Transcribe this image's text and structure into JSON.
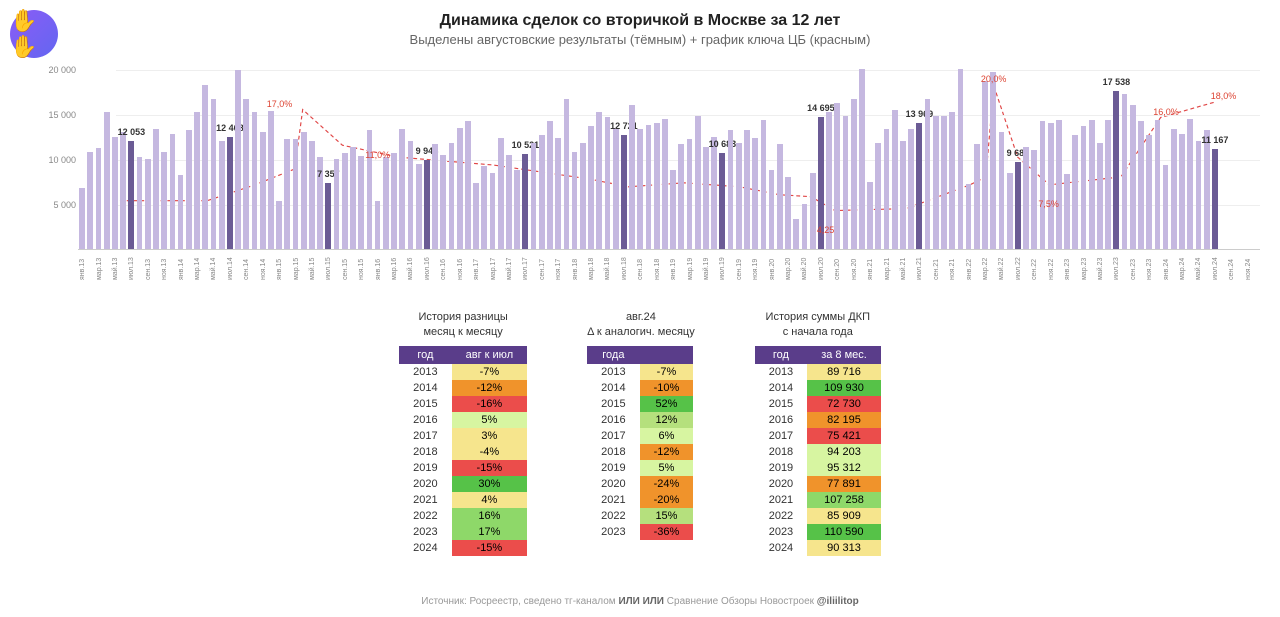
{
  "header": {
    "title": "Динамика сделок со вторичкой в Москве за 12 лет",
    "subtitle": "Выделены августовские результаты (тёмным) + график ключа ЦБ (красным)"
  },
  "chart": {
    "type": "bar+line",
    "ylim": [
      0,
      20000
    ],
    "yticks": [
      5000,
      10000,
      15000,
      20000
    ],
    "ytick_labels": [
      "5 000",
      "10 000",
      "15 000",
      "20 000"
    ],
    "bar_color": "#c5b8e0",
    "bar_highlight_color": "#6b5b95",
    "line_color": "#e04646",
    "line_dash": "4,3",
    "background": "#ffffff",
    "grid_color": "#eeeeee",
    "months": [
      "янв",
      "мар",
      "май",
      "июл",
      "сен",
      "ноя"
    ],
    "years": [
      13,
      14,
      15,
      16,
      17,
      18,
      19,
      20,
      21,
      22,
      23,
      24
    ],
    "bars": [
      6800,
      10800,
      11200,
      15200,
      12500,
      13000,
      12053,
      10200,
      10000,
      13300,
      10800,
      12800,
      8200,
      13200,
      15200,
      18200,
      16700,
      12000,
      12468,
      19900,
      16700,
      15200,
      13000,
      15300,
      5300,
      12200,
      12200,
      13000,
      12000,
      10200,
      7357,
      10000,
      10700,
      11300,
      10300,
      13200,
      5300,
      10200,
      10700,
      13300,
      12000,
      9400,
      9944,
      11700,
      10500,
      11800,
      13500,
      14200,
      7300,
      9200,
      8400,
      12300,
      10500,
      8800,
      10521,
      11800,
      12700,
      14200,
      12300,
      16700,
      10800,
      11800,
      13700,
      15200,
      14700,
      13400,
      12721,
      16000,
      13300,
      13800,
      14000,
      14500,
      8800,
      11700,
      12200,
      14800,
      11300,
      12500,
      10683,
      13200,
      11800,
      13200,
      12300,
      14300,
      8800,
      11700,
      8000,
      3300,
      5000,
      8500,
      14695,
      15200,
      16200,
      14800,
      16700,
      20000,
      7500,
      11800,
      13300,
      15500,
      12000,
      13300,
      13969,
      16700,
      14800,
      14800,
      15200,
      20000,
      7200,
      11700,
      18700,
      19700,
      13000,
      8400,
      9689,
      11300,
      11000,
      14200,
      14000,
      14300,
      8300,
      12700,
      13700,
      14300,
      11800,
      14300,
      17538,
      17200,
      16000,
      14200,
      12700,
      14300,
      9300,
      13300,
      12800,
      14500,
      12000,
      13200,
      11167
    ],
    "highlight_idx": [
      6,
      18,
      30,
      42,
      54,
      66,
      78,
      90,
      102,
      114,
      126,
      138
    ],
    "highlight_labels": {
      "6": "12 053",
      "18": "12 468",
      "30": "7 357",
      "42": "9 944",
      "54": "10 521",
      "66": "12 721",
      "78": "10 683",
      "90": "14 695",
      "102": "13 969",
      "114": "9 689",
      "126": "17 538",
      "138": "11 167"
    },
    "rate_points": [
      {
        "i": 0,
        "v": 5.5
      },
      {
        "i": 11,
        "v": 5.5
      },
      {
        "i": 17,
        "v": 7.5
      },
      {
        "i": 22,
        "v": 9.5
      },
      {
        "i": 23,
        "v": 17.0
      },
      {
        "i": 28,
        "v": 12.5
      },
      {
        "i": 35,
        "v": 11.0
      },
      {
        "i": 47,
        "v": 10.0
      },
      {
        "i": 59,
        "v": 8.25
      },
      {
        "i": 64,
        "v": 7.25
      },
      {
        "i": 71,
        "v": 7.75
      },
      {
        "i": 78,
        "v": 7.25
      },
      {
        "i": 83,
        "v": 6.25
      },
      {
        "i": 87,
        "v": 6.0
      },
      {
        "i": 90,
        "v": 4.25
      },
      {
        "i": 99,
        "v": 4.5
      },
      {
        "i": 107,
        "v": 7.5
      },
      {
        "i": 109,
        "v": 8.5
      },
      {
        "i": 110,
        "v": 20.0
      },
      {
        "i": 113,
        "v": 11.0
      },
      {
        "i": 117,
        "v": 7.5
      },
      {
        "i": 126,
        "v": 8.5
      },
      {
        "i": 129,
        "v": 13.0
      },
      {
        "i": 131,
        "v": 16.0
      },
      {
        "i": 138,
        "v": 18.0
      }
    ],
    "rate_labels": [
      {
        "i": 23,
        "text": "17,0%",
        "dy": -12
      },
      {
        "i": 35,
        "text": "11,0%",
        "dy": -10
      },
      {
        "i": 90,
        "text": "4,25",
        "dy": 10
      },
      {
        "i": 110,
        "text": "20,0%",
        "dy": -12
      },
      {
        "i": 117,
        "text": "7,5%",
        "dy": 10
      },
      {
        "i": 131,
        "text": "16,0%",
        "dy": -12
      },
      {
        "i": 138,
        "text": "18,0%",
        "dy": -12
      }
    ]
  },
  "table1": {
    "title_l1": "История разницы",
    "title_l2": "месяц к месяцу",
    "head": [
      "год",
      "авг к июл"
    ],
    "rows": [
      [
        "2013",
        "-7%",
        "#f6e58d"
      ],
      [
        "2014",
        "-12%",
        "#f0932b"
      ],
      [
        "2015",
        "-16%",
        "#eb4d4b"
      ],
      [
        "2016",
        "5%",
        "#d7f5a1"
      ],
      [
        "2017",
        "3%",
        "#f6e58d"
      ],
      [
        "2018",
        "-4%",
        "#f6e58d"
      ],
      [
        "2019",
        "-15%",
        "#eb4d4b"
      ],
      [
        "2020",
        "30%",
        "#56c248"
      ],
      [
        "2021",
        "4%",
        "#f6e58d"
      ],
      [
        "2022",
        "16%",
        "#8ed869"
      ],
      [
        "2023",
        "17%",
        "#8ed869"
      ],
      [
        "2024",
        "-15%",
        "#eb4d4b"
      ]
    ]
  },
  "table2": {
    "title_l1": "авг.24",
    "title_l2": "Δ к аналогич. месяцу",
    "head": [
      "года",
      ""
    ],
    "rows": [
      [
        "2013",
        "-7%",
        "#f6e58d"
      ],
      [
        "2014",
        "-10%",
        "#f0932b"
      ],
      [
        "2015",
        "52%",
        "#56c248"
      ],
      [
        "2016",
        "12%",
        "#b5e07d"
      ],
      [
        "2017",
        "6%",
        "#d7f5a1"
      ],
      [
        "2018",
        "-12%",
        "#f0932b"
      ],
      [
        "2019",
        "5%",
        "#d7f5a1"
      ],
      [
        "2020",
        "-24%",
        "#f0932b"
      ],
      [
        "2021",
        "-20%",
        "#f0932b"
      ],
      [
        "2022",
        "15%",
        "#b5e07d"
      ],
      [
        "2023",
        "-36%",
        "#eb4d4b"
      ]
    ]
  },
  "table3": {
    "title_l1": "История суммы ДКП",
    "title_l2": "с начала года",
    "head": [
      "год",
      "за 8 мес."
    ],
    "rows": [
      [
        "2013",
        "89 716",
        "#f6e58d"
      ],
      [
        "2014",
        "109 930",
        "#56c248"
      ],
      [
        "2015",
        "72 730",
        "#eb4d4b"
      ],
      [
        "2016",
        "82 195",
        "#f0932b"
      ],
      [
        "2017",
        "75 421",
        "#eb4d4b"
      ],
      [
        "2018",
        "94 203",
        "#d7f5a1"
      ],
      [
        "2019",
        "95 312",
        "#d7f5a1"
      ],
      [
        "2020",
        "77 891",
        "#f0932b"
      ],
      [
        "2021",
        "107 258",
        "#8ed869"
      ],
      [
        "2022",
        "85 909",
        "#f6e58d"
      ],
      [
        "2023",
        "110 590",
        "#56c248"
      ],
      [
        "2024",
        "90 313",
        "#f6e58d"
      ]
    ]
  },
  "footer": {
    "prefix": "Источник: Росреестр, сведено тг-каналом ",
    "bold": "ИЛИ ИЛИ",
    "mid": " Сравнение Обзоры Новостроек  ",
    "handle": "@iliilitop"
  }
}
